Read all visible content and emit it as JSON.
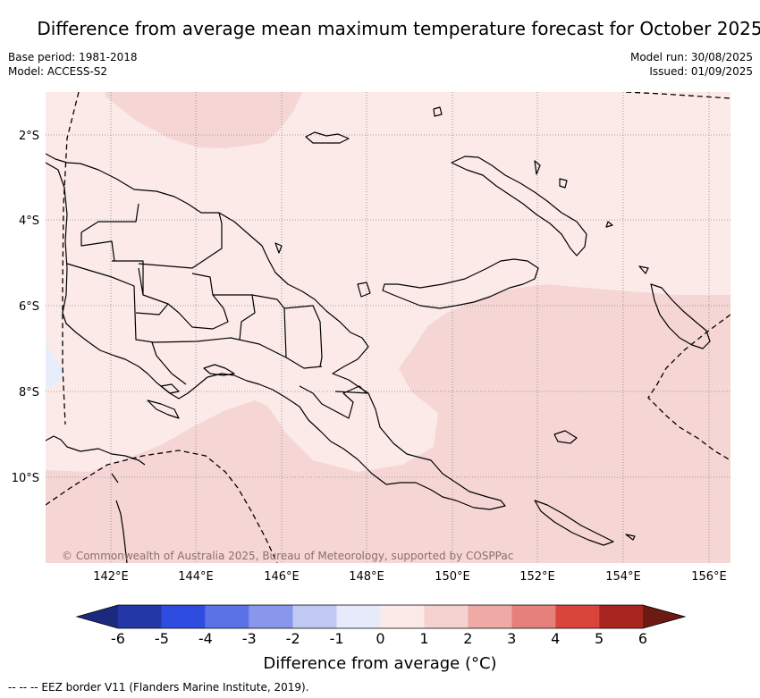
{
  "title": "Difference from average mean maximum temperature forecast for October 2025",
  "meta": {
    "base_period": "Base period: 1981-2018",
    "model": "Model: ACCESS-S2",
    "model_run": "Model run: 30/08/2025",
    "issued": "Issued: 01/09/2025"
  },
  "map": {
    "lon_ticks": [
      "142°E",
      "144°E",
      "146°E",
      "148°E",
      "150°E",
      "152°E",
      "154°E",
      "156°E"
    ],
    "lat_ticks": [
      "2°S",
      "4°S",
      "6°S",
      "8°S",
      "10°S"
    ],
    "copyright": "© Commonwealth of Australia 2025, Bureau of Meteorology, supported by COSPPac",
    "colors": {
      "class_0_1": "#fbeae8",
      "class_1_2": "#f5d6d4",
      "class_minus1_0": "#e8edfb",
      "land_outline": "#000000",
      "graticule": "#888888"
    }
  },
  "colorbar": {
    "ticks": [
      "-6",
      "-5",
      "-4",
      "-3",
      "-2",
      "-1",
      "0",
      "1",
      "2",
      "3",
      "4",
      "5",
      "6"
    ],
    "colors": [
      "#2337a6",
      "#2e4ce0",
      "#5a72e6",
      "#8897ec",
      "#c0c8f4",
      "#e6eafa",
      "#fbeae8",
      "#f5d2d0",
      "#efaaa6",
      "#e6807a",
      "#d9453a",
      "#a8261f"
    ],
    "under_color": "#1b2a7e",
    "over_color": "#6e1a14",
    "label": "Difference from average (°C)"
  },
  "footnote": "-- -- -- EEZ border V11 (Flanders Marine Institute, 2019)."
}
